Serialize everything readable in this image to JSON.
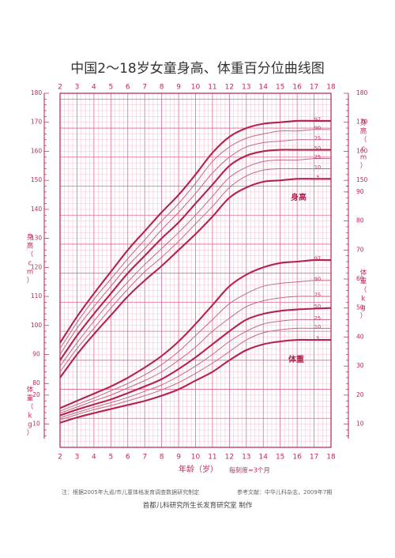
{
  "title": "中国2～18岁女童身高、体重百分位曲线图",
  "footer": {
    "note_left": "注：根据2005年九省/市儿童体格发育调查数据研究制定",
    "note_right": "参考文献：中华儿科杂志，2009年7期",
    "maker": "首都儿科研究所生长发育研究室 制作"
  },
  "colors": {
    "grid": "#f0a8c0",
    "grid_major": "#e06a8e",
    "curve": "#b2244c",
    "curve_light": "#c06a88",
    "text": "#c0285a"
  },
  "chart_data": {
    "type": "line",
    "title": "中国2～18岁女童身高、体重百分位曲线图",
    "xlabel": "年龄（岁）",
    "xlabel_note": "每刻度=3个月",
    "x_ticks": [
      "2",
      "3",
      "4",
      "5",
      "6",
      "7",
      "8",
      "9",
      "10",
      "11",
      "12",
      "13",
      "14",
      "15",
      "16",
      "17",
      "18"
    ],
    "xlim": [
      2,
      18
    ],
    "height_axis": {
      "label_chars": [
        "身",
        "高",
        "（",
        "c",
        "m",
        "）"
      ],
      "unit": "cm",
      "ylim": [
        80,
        180
      ],
      "left_ticks": [
        "180",
        "170",
        "160",
        "150",
        "140",
        "130",
        "120",
        "110",
        "100",
        "90",
        "80"
      ],
      "right_ticks": [
        "180",
        "170",
        "160",
        "150"
      ]
    },
    "weight_axis": {
      "label_chars": [
        "体",
        "重",
        "（",
        "k",
        "g",
        "）"
      ],
      "unit": "kg",
      "ylim": [
        5,
        95
      ],
      "left_ticks": [
        "20",
        "10"
      ],
      "right_ticks": [
        "90",
        "80",
        "70",
        "60",
        "50",
        "40",
        "30",
        "20",
        "10"
      ]
    },
    "height_label": "身高",
    "weight_label": "体重",
    "x": [
      2,
      3,
      4,
      5,
      6,
      7,
      8,
      9,
      10,
      11,
      12,
      13,
      14,
      15,
      16,
      17,
      18
    ],
    "height_series": [
      {
        "name": "97",
        "values": [
          94.0,
          103.0,
          111.0,
          118.5,
          126.0,
          132.5,
          139.0,
          145.0,
          152.0,
          159.5,
          165.0,
          168.0,
          169.5,
          170.0,
          170.5,
          170.5,
          170.5
        ]
      },
      {
        "name": "90",
        "values": [
          92.0,
          101.0,
          109.0,
          116.0,
          123.0,
          129.5,
          136.0,
          142.0,
          149.0,
          156.5,
          161.5,
          164.5,
          166.0,
          167.0,
          167.0,
          167.5,
          167.5
        ]
      },
      {
        "name": "75",
        "values": [
          90.0,
          99.0,
          106.5,
          113.5,
          120.5,
          126.5,
          133.0,
          139.0,
          145.5,
          152.5,
          158.0,
          161.5,
          163.0,
          163.5,
          164.0,
          164.0,
          164.0
        ]
      },
      {
        "name": "50",
        "values": [
          88.0,
          96.5,
          104.0,
          111.0,
          118.0,
          124.0,
          130.0,
          135.5,
          142.0,
          148.5,
          155.0,
          158.5,
          160.0,
          160.5,
          160.5,
          160.5,
          160.5
        ]
      },
      {
        "name": "25",
        "values": [
          86.0,
          94.0,
          101.5,
          108.5,
          115.0,
          121.0,
          126.5,
          132.0,
          138.0,
          144.5,
          151.0,
          154.5,
          156.5,
          157.0,
          157.0,
          157.5,
          157.5
        ]
      },
      {
        "name": "10",
        "values": [
          84.0,
          92.0,
          99.0,
          106.0,
          112.5,
          118.5,
          123.5,
          129.0,
          135.0,
          141.0,
          147.5,
          151.5,
          153.5,
          154.0,
          154.0,
          154.0,
          154.0
        ]
      },
      {
        "name": "3",
        "values": [
          82.0,
          90.0,
          97.0,
          103.5,
          110.0,
          115.5,
          120.5,
          126.0,
          131.5,
          137.5,
          144.0,
          147.5,
          149.5,
          150.0,
          150.5,
          150.5,
          150.5
        ]
      }
    ],
    "weight_series": [
      {
        "name": "97",
        "values": [
          15.5,
          18.0,
          20.5,
          23.0,
          26.0,
          29.5,
          33.5,
          38.5,
          44.5,
          51.0,
          57.5,
          61.5,
          64.0,
          65.5,
          66.0,
          66.5,
          66.5
        ]
      },
      {
        "name": "90",
        "values": [
          14.5,
          16.8,
          19.0,
          21.5,
          24.0,
          27.0,
          30.5,
          35.0,
          40.5,
          46.0,
          51.5,
          55.0,
          57.5,
          58.5,
          59.0,
          59.5,
          59.5
        ]
      },
      {
        "name": "75",
        "values": [
          13.8,
          15.9,
          18.0,
          20.0,
          22.5,
          25.0,
          28.0,
          32.0,
          36.5,
          42.0,
          46.5,
          50.5,
          52.5,
          53.5,
          54.0,
          54.0,
          54.0
        ]
      },
      {
        "name": "50",
        "values": [
          13.0,
          15.0,
          16.8,
          18.5,
          20.7,
          23.0,
          25.5,
          29.0,
          33.0,
          37.5,
          42.0,
          46.0,
          48.0,
          49.0,
          49.5,
          49.8,
          50.0
        ]
      },
      {
        "name": "25",
        "values": [
          12.2,
          14.0,
          15.8,
          17.4,
          19.2,
          21.3,
          23.5,
          26.5,
          30.0,
          34.0,
          38.5,
          42.0,
          44.5,
          45.5,
          46.0,
          46.0,
          46.0
        ]
      },
      {
        "name": "10",
        "values": [
          11.5,
          13.3,
          15.0,
          16.4,
          18.0,
          19.8,
          21.8,
          24.3,
          27.5,
          31.0,
          35.0,
          39.0,
          41.5,
          42.5,
          43.0,
          43.0,
          43.0
        ]
      },
      {
        "name": "3",
        "values": [
          10.5,
          12.3,
          13.8,
          15.2,
          16.6,
          18.0,
          19.8,
          22.0,
          25.0,
          28.0,
          32.0,
          35.5,
          37.5,
          38.5,
          39.0,
          39.0,
          39.0
        ]
      }
    ]
  }
}
